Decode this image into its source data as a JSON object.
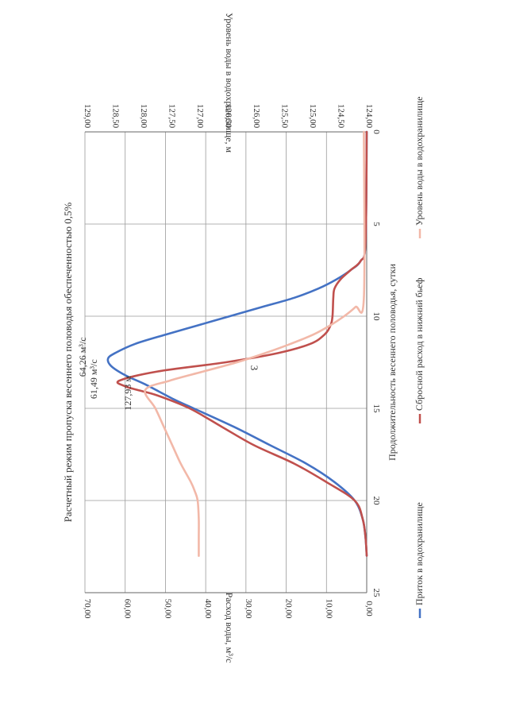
{
  "page_number": "3",
  "chart_data": {
    "type": "line",
    "title": "Расчетный режим пропуска весеннего половодья обеспеченностью 0,5%",
    "xlabel": "Продолжительность весеннего половодья, сутки",
    "ylabel": "Расход воды, м³/с",
    "y2label": "Уровень воды в водохранилище, м",
    "xlim": [
      0,
      25
    ],
    "ylim": [
      0,
      70
    ],
    "y2lim": [
      124,
      129
    ],
    "x_ticks": [
      "0",
      "5",
      "10",
      "15",
      "20",
      "25"
    ],
    "y_ticks": [
      "0,00",
      "10,00",
      "20,00",
      "30,00",
      "40,00",
      "50,00",
      "60,00",
      "70,00"
    ],
    "y2_ticks": [
      "124,00",
      "124,50",
      "125,00",
      "125,50",
      "126,00",
      "126,50",
      "127,00",
      "127,50",
      "128,00",
      "128,50",
      "129,00"
    ],
    "grid": true,
    "legend_position": "bottom",
    "colors": {
      "inflow": "#4472c4",
      "discharge": "#c0504d",
      "level": "#f2b8a8",
      "grid": "#9a9a9a",
      "axis": "#666666"
    },
    "series": [
      {
        "name": "Приток в водохранилище",
        "axis": "left",
        "x": [
          0,
          6,
          7,
          7.5,
          8,
          8.5,
          9,
          9.5,
          10,
          10.5,
          11,
          11.5,
          12,
          12.3,
          12.7,
          13.2,
          13.7,
          14.5,
          15,
          16,
          17,
          18,
          19,
          20,
          21,
          22,
          23
        ],
        "y": [
          0,
          0.3,
          1.5,
          4,
          7.5,
          12,
          18,
          26,
          34,
          42,
          50,
          57.5,
          62.5,
          64.26,
          63.5,
          60,
          55,
          48,
          43,
          33,
          24,
          15,
          8,
          3,
          1,
          0.3,
          0
        ]
      },
      {
        "name": "Сбросной расход в нижний бьеф",
        "axis": "left",
        "x": [
          0,
          6,
          7,
          7.5,
          8,
          8.5,
          9,
          10,
          10.5,
          11,
          11.5,
          12,
          12.5,
          13,
          13.5,
          13.8,
          14,
          14.3,
          15,
          16,
          17,
          18,
          19,
          20,
          21,
          22,
          23
        ],
        "y": [
          0,
          0.3,
          1.5,
          4,
          6.5,
          8,
          8.3,
          8.5,
          9,
          10.5,
          14,
          22,
          35,
          52,
          61.49,
          60,
          57,
          52,
          44,
          36,
          28,
          18,
          10,
          3,
          1,
          0.3,
          0
        ]
      },
      {
        "name": "Уровень воды в водохранилище",
        "axis": "right",
        "x": [
          0,
          9,
          9.5,
          10,
          10.5,
          11,
          11.5,
          12,
          12.5,
          13,
          13.5,
          14,
          15,
          16,
          17,
          18,
          19,
          19.5,
          20,
          21,
          22,
          23
        ],
        "y": [
          124.05,
          124.05,
          124.2,
          124.4,
          124.65,
          124.95,
          125.35,
          125.8,
          126.3,
          126.9,
          127.5,
          127.93,
          127.75,
          127.6,
          127.45,
          127.3,
          127.12,
          127.05,
          127.0,
          126.98,
          126.98,
          126.98
        ]
      }
    ],
    "annotations": [
      {
        "text": "64,26 м³/с",
        "x": 12.3,
        "y": 64.26
      },
      {
        "text": "61,49 м³/с",
        "x": 13.5,
        "y": 61.49
      },
      {
        "text": "127,93 м",
        "x": 14.0,
        "y": 127.93
      }
    ]
  }
}
